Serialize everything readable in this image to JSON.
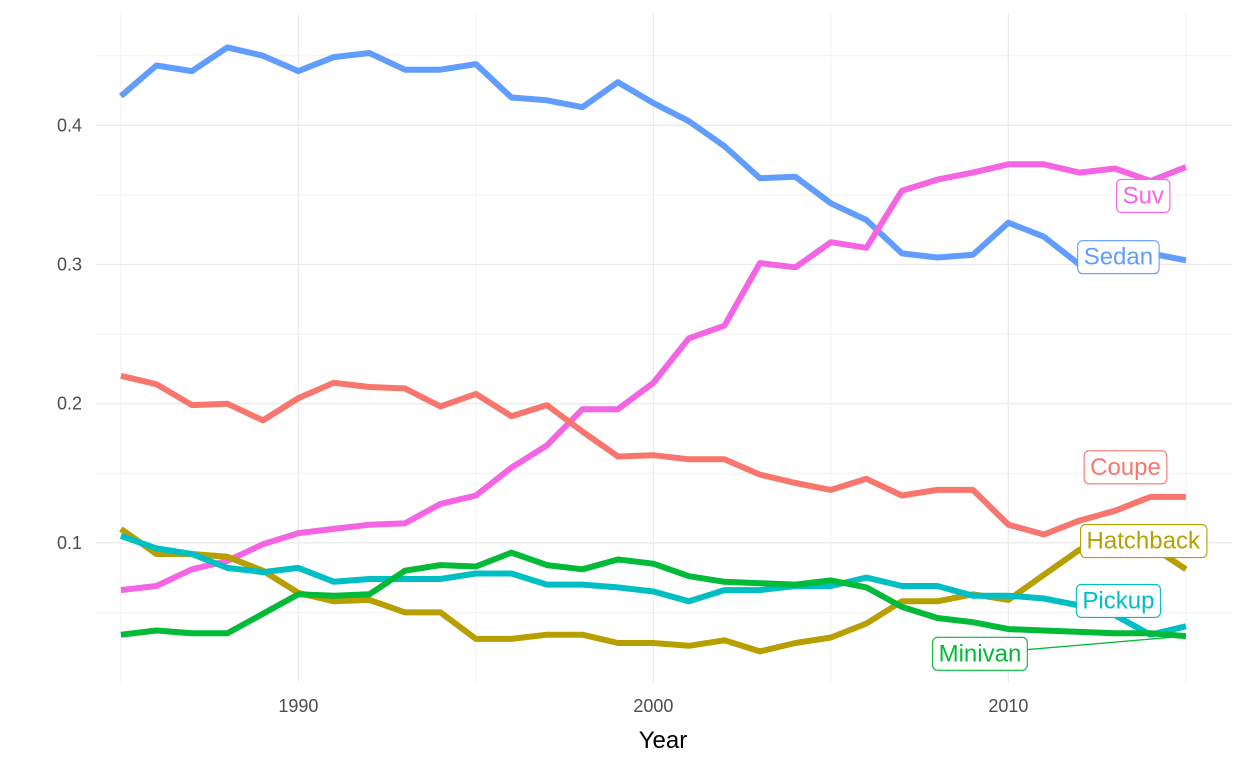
{
  "chart_data": {
    "type": "line",
    "title": "",
    "xlabel": "Year",
    "ylabel": "",
    "xlim": [
      1984.3,
      2016.3
    ],
    "ylim": [
      0,
      0.48
    ],
    "x_ticks": [
      1990,
      2000,
      2010
    ],
    "y_ticks": [
      0.1,
      0.2,
      0.3,
      0.4
    ],
    "x_tick_labels": [
      "1990",
      "2000",
      "2010"
    ],
    "y_tick_labels": [
      "0.1",
      "0.2",
      "0.3",
      "0.4"
    ],
    "grid": true,
    "legend": "direct-labels",
    "x": [
      1985,
      1986,
      1987,
      1988,
      1989,
      1990,
      1991,
      1992,
      1993,
      1994,
      1995,
      1996,
      1997,
      1998,
      1999,
      2000,
      2001,
      2002,
      2003,
      2004,
      2005,
      2006,
      2007,
      2008,
      2009,
      2010,
      2011,
      2012,
      2013,
      2014,
      2015
    ],
    "series": [
      {
        "name": "Sedan",
        "color": "#619CFF",
        "values": [
          0.421,
          0.443,
          0.439,
          0.456,
          0.45,
          0.439,
          0.449,
          0.452,
          0.44,
          0.44,
          0.444,
          0.42,
          0.418,
          0.413,
          0.431,
          0.416,
          0.403,
          0.385,
          0.362,
          0.363,
          0.344,
          0.332,
          0.308,
          0.305,
          0.307,
          0.33,
          0.32,
          0.3,
          0.3,
          0.308,
          0.303
        ]
      },
      {
        "name": "Suv",
        "color": "#F564E3",
        "values": [
          0.066,
          0.069,
          0.081,
          0.087,
          0.099,
          0.107,
          0.11,
          0.113,
          0.114,
          0.128,
          0.134,
          0.154,
          0.17,
          0.196,
          0.196,
          0.215,
          0.247,
          0.256,
          0.301,
          0.298,
          0.316,
          0.312,
          0.353,
          0.361,
          0.366,
          0.372,
          0.372,
          0.366,
          0.369,
          0.36,
          0.37
        ]
      },
      {
        "name": "Coupe",
        "color": "#F8766D",
        "values": [
          0.22,
          0.214,
          0.199,
          0.2,
          0.188,
          0.204,
          0.215,
          0.212,
          0.211,
          0.198,
          0.207,
          0.191,
          0.199,
          0.18,
          0.162,
          0.163,
          0.16,
          0.16,
          0.149,
          0.143,
          0.138,
          0.146,
          0.134,
          0.138,
          0.138,
          0.113,
          0.106,
          0.116,
          0.123,
          0.133,
          0.133
        ]
      },
      {
        "name": "Hatchback",
        "color": "#B79F00",
        "values": [
          0.11,
          0.092,
          0.092,
          0.09,
          0.08,
          0.064,
          0.058,
          0.059,
          0.05,
          0.05,
          0.031,
          0.031,
          0.034,
          0.034,
          0.028,
          0.028,
          0.026,
          0.03,
          0.022,
          0.028,
          0.032,
          0.042,
          0.058,
          0.058,
          0.063,
          0.059,
          0.077,
          0.095,
          0.104,
          0.098,
          0.081
        ]
      },
      {
        "name": "Pickup",
        "color": "#00BFC4",
        "values": [
          0.105,
          0.096,
          0.092,
          0.082,
          0.079,
          0.082,
          0.072,
          0.074,
          0.074,
          0.074,
          0.078,
          0.078,
          0.07,
          0.07,
          0.068,
          0.065,
          0.058,
          0.066,
          0.066,
          0.069,
          0.069,
          0.075,
          0.069,
          0.069,
          0.062,
          0.062,
          0.06,
          0.055,
          0.048,
          0.034,
          0.04
        ]
      },
      {
        "name": "Minivan",
        "color": "#00BA38",
        "values": [
          0.034,
          0.037,
          0.035,
          0.035,
          0.049,
          0.063,
          0.062,
          0.063,
          0.08,
          0.084,
          0.083,
          0.093,
          0.084,
          0.081,
          0.088,
          0.085,
          0.076,
          0.072,
          0.071,
          0.07,
          0.073,
          0.068,
          0.054,
          0.046,
          0.043,
          0.038,
          0.037,
          0.036,
          0.035,
          0.035,
          0.033
        ]
      }
    ],
    "labels": [
      {
        "text": "Suv",
        "color": "#F564E3",
        "x": 2013.8,
        "y": 0.35
      },
      {
        "text": "Sedan",
        "color": "#619CFF",
        "x": 2013.1,
        "y": 0.306
      },
      {
        "text": "Coupe",
        "color": "#F8766D",
        "x": 2013.3,
        "y": 0.155
      },
      {
        "text": "Hatchback",
        "color": "#B79F00",
        "x": 2013.8,
        "y": 0.102
      },
      {
        "text": "Pickup",
        "color": "#00BFC4",
        "x": 2013.1,
        "y": 0.059
      },
      {
        "text": "Minivan",
        "color": "#00BA38",
        "x": 2009.2,
        "y": 0.021,
        "leader_to": {
          "x": 2015,
          "y": 0.033
        }
      }
    ]
  }
}
